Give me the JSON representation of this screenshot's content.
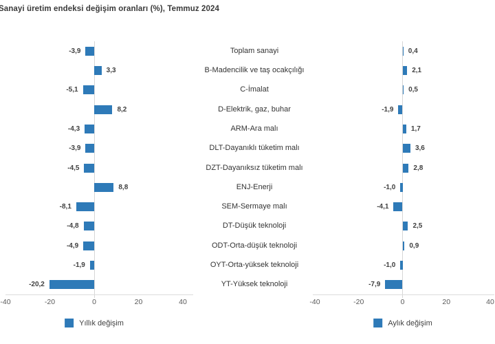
{
  "title": "Sanayi üretim endeksi değişim oranları (%), Temmuz 2024",
  "colors": {
    "bar": "#2e7ab8",
    "zero_line": "#d6d6d6",
    "baseline": "#dcdcdc",
    "title_text": "#3a3a3a",
    "value_text": "#3f3f3f",
    "category_text": "#333333",
    "tick_text": "#595959"
  },
  "categories": [
    "Toplam sanayi",
    "B-Madencilik ve taş ocakçılığı",
    "C-İmalat",
    "D-Elektrik, gaz, buhar",
    "ARM-Ara malı",
    "DLT-Dayanıklı tüketim malı",
    "DZT-Dayanıksız tüketim malı",
    "ENJ-Enerji",
    "SEM-Sermaye malı",
    "DT-Düşük teknoloji",
    "ODT-Orta-düşük teknoloji",
    "OYT-Orta-yüksek teknoloji",
    "YT-Yüksek teknoloji"
  ],
  "chart_data": [
    {
      "type": "bar",
      "orientation": "horizontal",
      "name": "Yıllık değişim",
      "categories": [
        "Toplam sanayi",
        "B-Madencilik ve taş ocakçılığı",
        "C-İmalat",
        "D-Elektrik, gaz, buhar",
        "ARM-Ara malı",
        "DLT-Dayanıklı tüketim malı",
        "DZT-Dayanıksız tüketim malı",
        "ENJ-Enerji",
        "SEM-Sermaye malı",
        "DT-Düşük teknoloji",
        "ODT-Orta-düşük teknoloji",
        "OYT-Orta-yüksek teknoloji",
        "YT-Yüksek teknoloji"
      ],
      "values": [
        -3.9,
        3.3,
        -5.1,
        8.2,
        -4.3,
        -3.9,
        -4.5,
        8.8,
        -8.1,
        -4.8,
        -4.9,
        -1.9,
        -20.2
      ],
      "labels": [
        "-3,9",
        "3,3",
        "-5,1",
        "8,2",
        "-4,3",
        "-3,9",
        "-4,5",
        "8,8",
        "-8,1",
        "-4,8",
        "-4,9",
        "-1,9",
        "-20,2"
      ],
      "xlim": [
        -40,
        40
      ],
      "ticks": [
        -40,
        -20,
        0,
        20,
        40
      ],
      "tick_labels": [
        "-40",
        "-20",
        "0",
        "20",
        "40"
      ],
      "grid": false,
      "legend_position": "bottom"
    },
    {
      "type": "bar",
      "orientation": "horizontal",
      "name": "Aylık değişim",
      "categories": [
        "Toplam sanayi",
        "B-Madencilik ve taş ocakçılığı",
        "C-İmalat",
        "D-Elektrik, gaz, buhar",
        "ARM-Ara malı",
        "DLT-Dayanıklı tüketim malı",
        "DZT-Dayanıksız tüketim malı",
        "ENJ-Enerji",
        "SEM-Sermaye malı",
        "DT-Düşük teknoloji",
        "ODT-Orta-düşük teknoloji",
        "OYT-Orta-yüksek teknoloji",
        "YT-Yüksek teknoloji"
      ],
      "values": [
        0.4,
        2.1,
        0.5,
        -1.9,
        1.7,
        3.6,
        2.8,
        -1.0,
        -4.1,
        2.5,
        0.9,
        -1.0,
        -7.9
      ],
      "labels": [
        "0,4",
        "2,1",
        "0,5",
        "-1,9",
        "1,7",
        "3,6",
        "2,8",
        "-1,0",
        "-4,1",
        "2,5",
        "0,9",
        "-1,0",
        "-7,9"
      ],
      "xlim": [
        -40,
        40
      ],
      "ticks": [
        -40,
        -20,
        0,
        20,
        40
      ],
      "tick_labels": [
        "-40",
        "-20",
        "0",
        "20",
        "40"
      ],
      "grid": false,
      "legend_position": "bottom"
    }
  ]
}
